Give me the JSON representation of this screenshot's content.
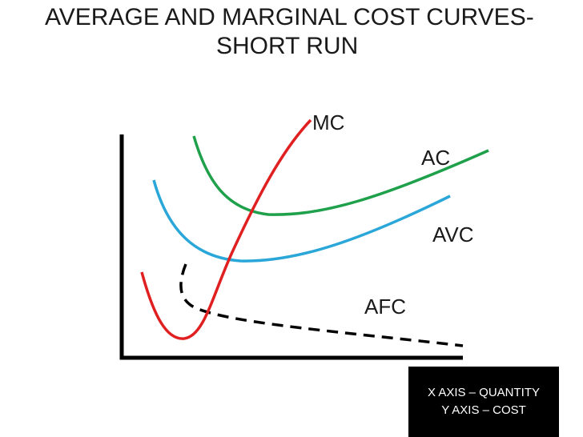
{
  "title": {
    "line1": "AVERAGE AND MARGINAL COST CURVES-",
    "line2": "SHORT RUN"
  },
  "curves": [
    {
      "key": "mc",
      "label": "MC",
      "color": "#e02020",
      "style": "solid"
    },
    {
      "key": "ac",
      "label": "AC",
      "color": "#1fa04a",
      "style": "solid"
    },
    {
      "key": "avc",
      "label": "AVC",
      "color": "#2aa7d8",
      "style": "solid"
    },
    {
      "key": "afc",
      "label": "AFC",
      "color": "#000000",
      "style": "dashed"
    }
  ],
  "legend": {
    "x_axis": "X AXIS – QUANTITY",
    "y_axis": "Y AXIS – COST"
  }
}
